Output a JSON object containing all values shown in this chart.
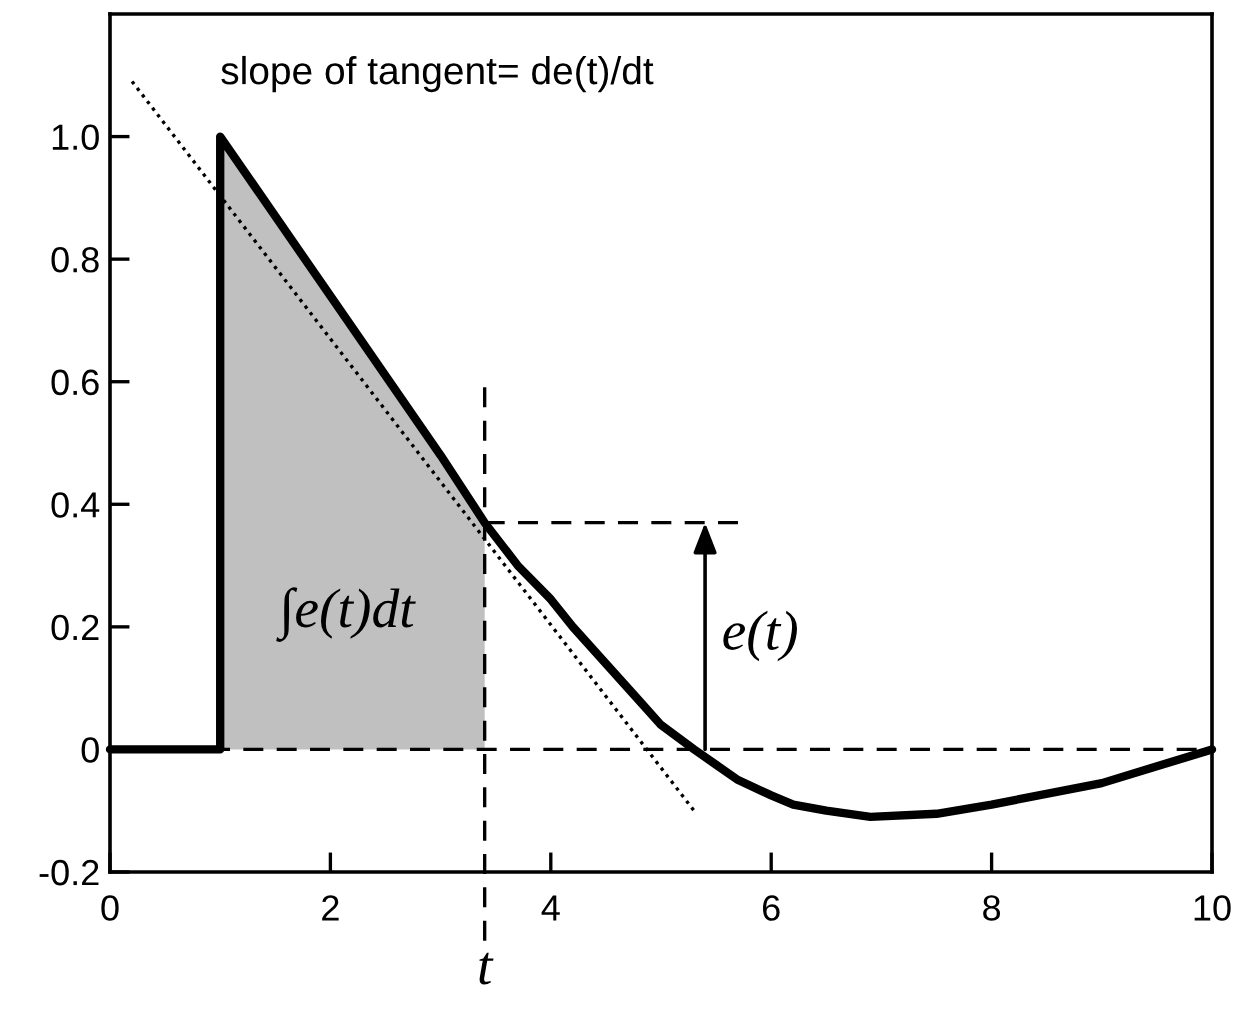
{
  "chart_data": {
    "type": "line",
    "xlim": [
      0,
      10
    ],
    "ylim": [
      -0.2,
      1.2
    ],
    "xticks": [
      0,
      2,
      4,
      6,
      8,
      10
    ],
    "yticks": [
      -0.2,
      0,
      0.2,
      0.4,
      0.6,
      0.8,
      {
        "value": 1,
        "label": "1.0"
      }
    ],
    "grid": false,
    "series": [
      {
        "type": "area",
        "color": "#c0c0c0",
        "x": [
          1,
          1,
          2,
          3,
          3.4
        ],
        "values": [
          0,
          1.0,
          0.74,
          0.48,
          0.37
        ]
      },
      {
        "color": "#000000",
        "x": [
          0,
          1,
          1,
          2,
          3,
          3.4,
          3.7,
          4,
          4.2,
          4.5,
          4.8,
          5,
          5.3,
          5.5,
          5.7,
          6,
          6.2,
          6.5,
          6.9,
          7.5,
          8,
          9,
          10
        ],
        "values": [
          0,
          0,
          1.0,
          0.74,
          0.48,
          0.37,
          0.3,
          0.245,
          0.2,
          0.14,
          0.08,
          0.04,
          0,
          -0.025,
          -0.05,
          -0.075,
          -0.09,
          -0.1,
          -0.11,
          -0.105,
          -0.09,
          -0.055,
          0
        ]
      },
      {
        "color": "#000000",
        "line_style": "dotted",
        "x": [
          0.2,
          5.3
        ],
        "values": [
          1.09,
          -0.1
        ]
      },
      {
        "color": "#000000",
        "line_style": "dashed",
        "x": [
          3.4,
          5.7
        ],
        "values": [
          0.37,
          0.37
        ]
      }
    ],
    "ref_lines": [
      {
        "axis": "y",
        "value": 0,
        "line_style": "dashed",
        "color": "#000000"
      },
      {
        "axis": "x",
        "value": 3.4,
        "label": "t",
        "line_style": "dashed",
        "color": "#000000"
      }
    ],
    "annotations": [
      "slope of tangent= de(t)/dt",
      "∫e(t)dt",
      {
        "text": "e(t)",
        "x": 5.4,
        "y": 0.37
      }
    ]
  }
}
